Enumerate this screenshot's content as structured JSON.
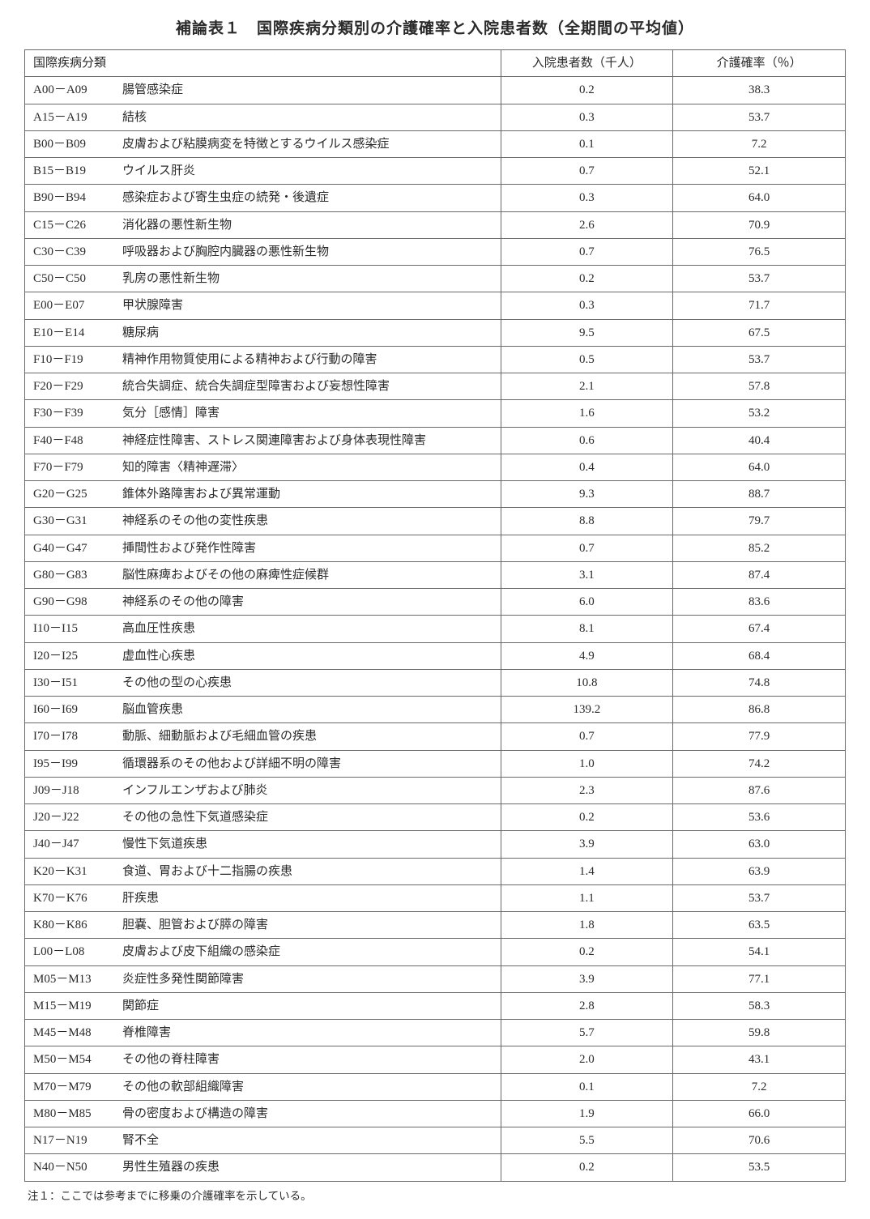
{
  "title": "補論表１　国際疾病分類別の介護確率と入院患者数（全期間の平均値）",
  "headers": {
    "category": "国際疾病分類",
    "patients": "入院患者数（千人）",
    "rate": "介護確率（％）"
  },
  "rows": [
    {
      "code": "A00－A09",
      "name": "腸管感染症",
      "patients": "0.2",
      "rate": "38.3"
    },
    {
      "code": "A15－A19",
      "name": "結核",
      "patients": "0.3",
      "rate": "53.7"
    },
    {
      "code": "B00－B09",
      "name": "皮膚および粘膜病変を特徴とするウイルス感染症",
      "patients": "0.1",
      "rate": "7.2"
    },
    {
      "code": "B15－B19",
      "name": "ウイルス肝炎",
      "patients": "0.7",
      "rate": "52.1"
    },
    {
      "code": "B90－B94",
      "name": "感染症および寄生虫症の続発・後遺症",
      "patients": "0.3",
      "rate": "64.0"
    },
    {
      "code": "C15－C26",
      "name": "消化器の悪性新生物",
      "patients": "2.6",
      "rate": "70.9"
    },
    {
      "code": "C30－C39",
      "name": "呼吸器および胸腔内臓器の悪性新生物",
      "patients": "0.7",
      "rate": "76.5"
    },
    {
      "code": "C50－C50",
      "name": "乳房の悪性新生物",
      "patients": "0.2",
      "rate": "53.7"
    },
    {
      "code": "E00－E07",
      "name": "甲状腺障害",
      "patients": "0.3",
      "rate": "71.7"
    },
    {
      "code": "E10－E14",
      "name": "糖尿病",
      "patients": "9.5",
      "rate": "67.5"
    },
    {
      "code": "F10－F19",
      "name": "精神作用物質使用による精神および行動の障害",
      "patients": "0.5",
      "rate": "53.7"
    },
    {
      "code": "F20－F29",
      "name": "統合失調症、統合失調症型障害および妄想性障害",
      "patients": "2.1",
      "rate": "57.8"
    },
    {
      "code": "F30－F39",
      "name": "気分［感情］障害",
      "patients": "1.6",
      "rate": "53.2"
    },
    {
      "code": "F40－F48",
      "name": "神経症性障害、ストレス関連障害および身体表現性障害",
      "patients": "0.6",
      "rate": "40.4"
    },
    {
      "code": "F70－F79",
      "name": "知的障害〈精神遅滞〉",
      "patients": "0.4",
      "rate": "64.0"
    },
    {
      "code": "G20－G25",
      "name": "錐体外路障害および異常運動",
      "patients": "9.3",
      "rate": "88.7"
    },
    {
      "code": "G30－G31",
      "name": "神経系のその他の変性疾患",
      "patients": "8.8",
      "rate": "79.7"
    },
    {
      "code": "G40－G47",
      "name": "挿間性および発作性障害",
      "patients": "0.7",
      "rate": "85.2"
    },
    {
      "code": "G80－G83",
      "name": "脳性麻痺およびその他の麻痺性症候群",
      "patients": "3.1",
      "rate": "87.4"
    },
    {
      "code": "G90－G98",
      "name": "神経系のその他の障害",
      "patients": "6.0",
      "rate": "83.6"
    },
    {
      "code": "I10－I15",
      "name": "高血圧性疾患",
      "patients": "8.1",
      "rate": "67.4"
    },
    {
      "code": "I20－I25",
      "name": "虚血性心疾患",
      "patients": "4.9",
      "rate": "68.4"
    },
    {
      "code": "I30－I51",
      "name": "その他の型の心疾患",
      "patients": "10.8",
      "rate": "74.8"
    },
    {
      "code": "I60－I69",
      "name": "脳血管疾患",
      "patients": "139.2",
      "rate": "86.8"
    },
    {
      "code": "I70－I78",
      "name": "動脈、細動脈および毛細血管の疾患",
      "patients": "0.7",
      "rate": "77.9"
    },
    {
      "code": "I95－I99",
      "name": "循環器系のその他および詳細不明の障害",
      "patients": "1.0",
      "rate": "74.2"
    },
    {
      "code": "J09－J18",
      "name": "インフルエンザおよび肺炎",
      "patients": "2.3",
      "rate": "87.6"
    },
    {
      "code": "J20－J22",
      "name": "その他の急性下気道感染症",
      "patients": "0.2",
      "rate": "53.6"
    },
    {
      "code": "J40－J47",
      "name": "慢性下気道疾患",
      "patients": "3.9",
      "rate": "63.0"
    },
    {
      "code": "K20－K31",
      "name": "食道、胃および十二指腸の疾患",
      "patients": "1.4",
      "rate": "63.9"
    },
    {
      "code": "K70－K76",
      "name": "肝疾患",
      "patients": "1.1",
      "rate": "53.7"
    },
    {
      "code": "K80－K86",
      "name": "胆嚢、胆管および膵の障害",
      "patients": "1.8",
      "rate": "63.5"
    },
    {
      "code": "L00－L08",
      "name": "皮膚および皮下組織の感染症",
      "patients": "0.2",
      "rate": "54.1"
    },
    {
      "code": "M05－M13",
      "name": "炎症性多発性関節障害",
      "patients": "3.9",
      "rate": "77.1"
    },
    {
      "code": "M15－M19",
      "name": "関節症",
      "patients": "2.8",
      "rate": "58.3"
    },
    {
      "code": "M45－M48",
      "name": "脊椎障害",
      "patients": "5.7",
      "rate": "59.8"
    },
    {
      "code": "M50－M54",
      "name": "その他の脊柱障害",
      "patients": "2.0",
      "rate": "43.1"
    },
    {
      "code": "M70－M79",
      "name": "その他の軟部組織障害",
      "patients": "0.1",
      "rate": "7.2"
    },
    {
      "code": "M80－M85",
      "name": "骨の密度および構造の障害",
      "patients": "1.9",
      "rate": "66.0"
    },
    {
      "code": "N17－N19",
      "name": "腎不全",
      "patients": "5.5",
      "rate": "70.6"
    },
    {
      "code": "N40－N50",
      "name": "男性生殖器の疾患",
      "patients": "0.2",
      "rate": "53.5"
    }
  ],
  "note": "注１：ここでは参考までに移乗の介護確率を示している。"
}
